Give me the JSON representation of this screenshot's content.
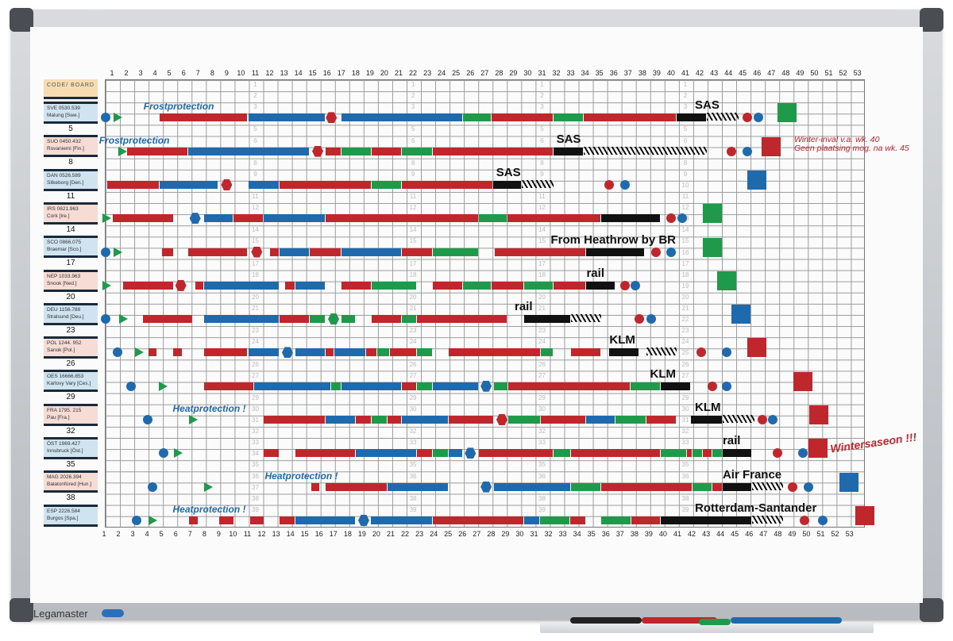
{
  "brand": "Legamaster",
  "header_label": "CODE/ BOARD",
  "colors": {
    "r": "#c0272d",
    "b": "#1f6aad",
    "g": "#1e9a4a",
    "k": "#111111",
    "y": "#f6dcb0",
    "lb": "#cfe3f1",
    "lp": "#f6dcd4"
  },
  "weeks": [
    "1",
    "2",
    "3",
    "4",
    "5",
    "6",
    "7",
    "8",
    "9",
    "10",
    "11",
    "12",
    "13",
    "14",
    "15",
    "16",
    "17",
    "18",
    "19",
    "20",
    "21",
    "22",
    "23",
    "24",
    "25",
    "26",
    "27",
    "28",
    "29",
    "30",
    "31",
    "32",
    "33",
    "34",
    "35",
    "36",
    "37",
    "38",
    "39",
    "40",
    "41",
    "42",
    "43",
    "44",
    "45",
    "46",
    "47",
    "48",
    "49",
    "50",
    "51",
    "52",
    "53"
  ],
  "lane_numbers": [
    "5",
    "8",
    "11",
    "14",
    "17",
    "20",
    "23",
    "26",
    "29",
    "32",
    "35",
    "38"
  ],
  "note": {
    "line1": "Winter-inval v.a. wk. 40",
    "line2": "Geen plaatsing mog. na wk. 45"
  },
  "lanes": [
    {
      "code": "SVE 0530.539",
      "place": "Malung [Swe.]",
      "bars": [
        [
          3.8,
          10.0,
          "r"
        ],
        [
          10.0,
          15.4,
          "b"
        ],
        [
          16.5,
          25.0,
          "b"
        ],
        [
          25.0,
          27.0,
          "g"
        ],
        [
          27.0,
          31.3,
          "r"
        ],
        [
          31.3,
          33.4,
          "g"
        ],
        [
          33.4,
          39.9,
          "r"
        ],
        [
          39.9,
          42.0,
          "k"
        ]
      ],
      "hatch": [
        [
          42.0,
          44.2
        ]
      ],
      "marks": [
        [
          0.06,
          "circle",
          "b"
        ],
        [
          0.9,
          "tri",
          "g"
        ],
        [
          15.8,
          "hex",
          "r"
        ],
        [
          44.8,
          "circle",
          "r"
        ],
        [
          45.6,
          "circle",
          "b"
        ],
        [
          47.6,
          "square",
          "g"
        ]
      ],
      "labels": [
        {
          "text": "Frostprotection",
          "week": 2.7,
          "color": "b"
        },
        {
          "text": "SAS",
          "week": 40.0,
          "color": "k"
        }
      ]
    },
    {
      "code": "SUO 0450.432",
      "place": "Rovaniemi [Fin.]",
      "bars": [
        [
          1.55,
          5.8,
          "r"
        ],
        [
          5.8,
          14.3,
          "b"
        ],
        [
          15.4,
          16.5,
          "r"
        ],
        [
          16.5,
          18.6,
          "g"
        ],
        [
          18.6,
          20.7,
          "r"
        ],
        [
          20.7,
          22.9,
          "g"
        ],
        [
          22.9,
          31.3,
          "r"
        ],
        [
          31.3,
          33.4,
          "k"
        ]
      ],
      "hatch": [
        [
          33.4,
          42.0
        ]
      ],
      "marks": [
        [
          1.22,
          "tri",
          "g"
        ],
        [
          14.85,
          "hex",
          "r"
        ],
        [
          43.7,
          "circle",
          "r"
        ],
        [
          44.8,
          "circle",
          "b"
        ],
        [
          46.5,
          "square",
          "r"
        ]
      ],
      "labels": [
        {
          "text": "Frostprotection",
          "week": -0.4,
          "color": "b"
        },
        {
          "text": "SAS",
          "week": 31.5,
          "color": "k"
        }
      ]
    },
    {
      "code": "DAN 0526.589",
      "place": "Silkeborg [Den.]",
      "bars": [
        [
          0.17,
          3.8,
          "r"
        ],
        [
          3.8,
          7.9,
          "b"
        ],
        [
          10.0,
          12.2,
          "b"
        ],
        [
          12.2,
          18.6,
          "r"
        ],
        [
          18.6,
          20.7,
          "g"
        ],
        [
          20.7,
          27.1,
          "r"
        ],
        [
          27.1,
          29.1,
          "k"
        ]
      ],
      "hatch": [
        [
          29.1,
          31.3
        ]
      ],
      "marks": [
        [
          8.5,
          "hex",
          "r"
        ],
        [
          35.2,
          "circle",
          "r"
        ],
        [
          36.3,
          "circle",
          "b"
        ],
        [
          45.5,
          "square",
          "b"
        ]
      ],
      "labels": [
        {
          "text": "SAS",
          "week": 27.3,
          "color": "k"
        }
      ]
    },
    {
      "code": "IRS 0621.963",
      "place": "Cork [Ire.]",
      "bars": [
        [
          0.55,
          4.8,
          "r"
        ],
        [
          6.9,
          9.0,
          "b"
        ],
        [
          9.0,
          11.1,
          "r"
        ],
        [
          11.1,
          15.4,
          "b"
        ],
        [
          15.4,
          26.1,
          "r"
        ],
        [
          26.1,
          28.1,
          "g"
        ],
        [
          28.1,
          34.6,
          "r"
        ],
        [
          34.6,
          38.8,
          "k"
        ]
      ],
      "hatch": [],
      "marks": [
        [
          0.1,
          "tri",
          "g"
        ],
        [
          6.3,
          "hex",
          "b"
        ],
        [
          39.5,
          "circle",
          "r"
        ],
        [
          40.3,
          "circle",
          "b"
        ],
        [
          42.4,
          "square",
          "g"
        ]
      ],
      "labels": []
    },
    {
      "code": "SCO 0866.075",
      "place": "Braemar [Sco.]",
      "bars": [
        [
          4.0,
          4.8,
          "r"
        ],
        [
          5.8,
          10.0,
          "r"
        ],
        [
          11.5,
          12.2,
          "r"
        ],
        [
          12.2,
          14.3,
          "b"
        ],
        [
          14.3,
          16.5,
          "r"
        ],
        [
          16.5,
          20.7,
          "b"
        ],
        [
          20.7,
          22.9,
          "r"
        ],
        [
          22.9,
          26.1,
          "g"
        ],
        [
          27.2,
          33.6,
          "r"
        ],
        [
          33.6,
          37.7,
          "k"
        ]
      ],
      "hatch": [],
      "marks": [
        [
          0.06,
          "circle",
          "b"
        ],
        [
          0.9,
          "tri",
          "g"
        ],
        [
          10.6,
          "hex",
          "r"
        ],
        [
          38.45,
          "circle",
          "r"
        ],
        [
          39.5,
          "circle",
          "b"
        ],
        [
          42.4,
          "square",
          "g"
        ]
      ],
      "labels": [
        {
          "text": "From Heathrow by BR",
          "week": 31.4,
          "color": "k"
        }
      ]
    },
    {
      "code": "NEP 1033.963",
      "place": "Snook [Ned.]",
      "bars": [
        [
          1.3,
          4.8,
          "r"
        ],
        [
          6.3,
          6.9,
          "r"
        ],
        [
          6.9,
          12.2,
          "b"
        ],
        [
          12.6,
          13.3,
          "r"
        ],
        [
          13.3,
          15.4,
          "b"
        ],
        [
          16.5,
          18.6,
          "r"
        ],
        [
          18.6,
          21.8,
          "g"
        ],
        [
          22.9,
          25.0,
          "r"
        ],
        [
          25.0,
          27.0,
          "g"
        ],
        [
          27.0,
          29.25,
          "r"
        ],
        [
          29.25,
          31.3,
          "g"
        ],
        [
          31.3,
          33.6,
          "r"
        ],
        [
          33.6,
          35.6,
          "k"
        ]
      ],
      "hatch": [],
      "marks": [
        [
          0.1,
          "tri",
          "g"
        ],
        [
          5.3,
          "hex",
          "r"
        ],
        [
          36.3,
          "circle",
          "r"
        ],
        [
          37.0,
          "circle",
          "b"
        ],
        [
          43.4,
          "square",
          "g"
        ]
      ],
      "labels": [
        {
          "text": "rail",
          "week": 33.6,
          "color": "k"
        }
      ]
    },
    {
      "code": "DEU 1156.788",
      "place": "Stralsund [Deu.]",
      "bars": [
        [
          2.66,
          6.15,
          "r"
        ],
        [
          6.9,
          12.2,
          "b"
        ],
        [
          12.2,
          14.3,
          "r"
        ],
        [
          14.3,
          15.4,
          "g"
        ],
        [
          16.5,
          17.5,
          "g"
        ],
        [
          18.6,
          20.7,
          "r"
        ],
        [
          20.7,
          21.8,
          "g"
        ],
        [
          21.8,
          28.1,
          "r"
        ],
        [
          29.25,
          32.5,
          "k"
        ]
      ],
      "hatch": [
        [
          32.5,
          34.6
        ]
      ],
      "marks": [
        [
          0.06,
          "circle",
          "b"
        ],
        [
          1.3,
          "tri",
          "g"
        ],
        [
          15.96,
          "hex",
          "g"
        ],
        [
          37.3,
          "circle",
          "r"
        ],
        [
          38.1,
          "circle",
          "b"
        ],
        [
          44.4,
          "square",
          "b"
        ]
      ],
      "labels": [
        {
          "text": "rail",
          "week": 29.0,
          "color": "k"
        }
      ]
    },
    {
      "code": "POL 1244. 952",
      "place": "Sanok [Pol.]",
      "bars": [
        [
          3.05,
          3.66,
          "r"
        ],
        [
          4.76,
          5.43,
          "r"
        ],
        [
          6.9,
          10.0,
          "r"
        ],
        [
          10.0,
          12.2,
          "b"
        ],
        [
          13.3,
          15.4,
          "b"
        ],
        [
          15.4,
          16.0,
          "r"
        ],
        [
          16.0,
          18.2,
          "b"
        ],
        [
          18.2,
          19.0,
          "r"
        ],
        [
          19.0,
          19.9,
          "g"
        ],
        [
          19.9,
          21.8,
          "r"
        ],
        [
          21.8,
          22.9,
          "g"
        ],
        [
          23.99,
          30.4,
          "r"
        ],
        [
          30.4,
          31.3,
          "g"
        ],
        [
          32.5,
          34.6,
          "r"
        ],
        [
          35.2,
          37.3,
          "k"
        ]
      ],
      "hatch": [
        [
          37.8,
          39.9
        ]
      ],
      "marks": [
        [
          0.9,
          "circle",
          "b"
        ],
        [
          2.38,
          "tri",
          "g"
        ],
        [
          12.74,
          "hex",
          "b"
        ],
        [
          41.6,
          "circle",
          "r"
        ],
        [
          43.4,
          "circle",
          "b"
        ],
        [
          45.5,
          "square",
          "r"
        ]
      ],
      "labels": [
        {
          "text": "KLM",
          "week": 35.2,
          "color": "k"
        }
      ]
    },
    {
      "code": "OES 16666.853",
      "place": "Karlovy Vary [Ces.]",
      "bars": [
        [
          6.9,
          10.4,
          "r"
        ],
        [
          10.4,
          15.8,
          "b"
        ],
        [
          15.8,
          16.5,
          "g"
        ],
        [
          16.5,
          20.7,
          "b"
        ],
        [
          20.7,
          21.8,
          "r"
        ],
        [
          21.8,
          22.9,
          "g"
        ],
        [
          22.9,
          26.1,
          "b"
        ],
        [
          27.15,
          28.14,
          "g"
        ],
        [
          28.14,
          36.7,
          "r"
        ],
        [
          36.7,
          38.8,
          "g"
        ],
        [
          38.8,
          40.9,
          "k"
        ]
      ],
      "hatch": [],
      "marks": [
        [
          1.83,
          "circle",
          "b"
        ],
        [
          4.04,
          "tri",
          "g"
        ],
        [
          26.6,
          "hex",
          "b"
        ],
        [
          42.4,
          "circle",
          "r"
        ],
        [
          43.4,
          "circle",
          "b"
        ],
        [
          48.7,
          "square",
          "r"
        ]
      ],
      "labels": [
        {
          "text": "KLM",
          "week": 38.9,
          "color": "k"
        }
      ]
    },
    {
      "code": "FRA 1795. 215",
      "place": "Pau [Fra.]",
      "bars": [
        [
          11.1,
          15.4,
          "r"
        ],
        [
          15.4,
          17.5,
          "b"
        ],
        [
          17.5,
          18.6,
          "r"
        ],
        [
          18.6,
          19.7,
          "g"
        ],
        [
          19.7,
          20.7,
          "r"
        ],
        [
          20.7,
          24.0,
          "b"
        ],
        [
          24.0,
          27.15,
          "r"
        ],
        [
          28.14,
          30.4,
          "g"
        ],
        [
          30.4,
          33.6,
          "r"
        ],
        [
          33.6,
          35.6,
          "b"
        ],
        [
          35.6,
          37.8,
          "g"
        ],
        [
          37.8,
          39.9,
          "r"
        ],
        [
          40.9,
          43.1,
          "k"
        ]
      ],
      "hatch": [
        [
          43.1,
          45.3
        ]
      ],
      "marks": [
        [
          2.99,
          "circle",
          "b"
        ],
        [
          6.15,
          "tri",
          "g"
        ],
        [
          27.7,
          "hex",
          "r"
        ],
        [
          45.9,
          "circle",
          "r"
        ],
        [
          46.6,
          "circle",
          "b"
        ],
        [
          49.8,
          "square",
          "r"
        ]
      ],
      "labels": [
        {
          "text": "Heatprotection !",
          "week": 5.8,
          "color": "b"
        },
        {
          "text": "KLM",
          "week": 40.9,
          "color": "k"
        }
      ]
    },
    {
      "code": "ÖST 1969.427",
      "place": "Innsbruck [Öst.]",
      "bars": [
        [
          11.1,
          12.2,
          "r"
        ],
        [
          13.3,
          17.5,
          "r"
        ],
        [
          17.5,
          21.8,
          "b"
        ],
        [
          21.8,
          22.9,
          "r"
        ],
        [
          22.9,
          24.0,
          "g"
        ],
        [
          24.0,
          25.0,
          "b"
        ],
        [
          26.1,
          31.3,
          "r"
        ],
        [
          31.3,
          32.5,
          "g"
        ],
        [
          32.5,
          38.8,
          "r"
        ],
        [
          38.8,
          40.6,
          "g"
        ],
        [
          40.6,
          41.0,
          "r"
        ],
        [
          41.0,
          41.7,
          "g"
        ],
        [
          41.7,
          42.4,
          "r"
        ],
        [
          42.4,
          43.1,
          "g"
        ],
        [
          43.1,
          45.15,
          "k"
        ]
      ],
      "hatch": [],
      "marks": [
        [
          4.1,
          "circle",
          "b"
        ],
        [
          5.1,
          "tri",
          "g"
        ],
        [
          25.5,
          "hex",
          "b"
        ],
        [
          46.9,
          "circle",
          "r"
        ],
        [
          48.7,
          "circle",
          "b"
        ],
        [
          49.75,
          "square",
          "r"
        ]
      ],
      "labels": [
        {
          "text": "rail",
          "week": 43.1,
          "color": "k"
        },
        {
          "text": "Wintersaseon !!!",
          "week": 50.6,
          "color": "r"
        }
      ]
    },
    {
      "code": "MAG 2026.394",
      "place": "Balatonfüred [Hun.]",
      "bars": [
        [
          14.4,
          15.0,
          "r"
        ],
        [
          15.4,
          19.7,
          "r"
        ],
        [
          19.7,
          24.0,
          "b"
        ],
        [
          27.15,
          32.5,
          "b"
        ],
        [
          32.5,
          34.6,
          "g"
        ],
        [
          34.6,
          41.0,
          "r"
        ],
        [
          41.0,
          42.4,
          "g"
        ],
        [
          42.4,
          43.1,
          "r"
        ],
        [
          43.1,
          45.15,
          "k"
        ]
      ],
      "hatch": [
        [
          45.15,
          47.3
        ]
      ],
      "marks": [
        [
          3.32,
          "circle",
          "b"
        ],
        [
          7.2,
          "tri",
          "g"
        ],
        [
          26.6,
          "hex",
          "b"
        ],
        [
          48.0,
          "circle",
          "r"
        ],
        [
          49.1,
          "circle",
          "b"
        ],
        [
          51.9,
          "square",
          "b"
        ]
      ],
      "labels": [
        {
          "text": "Heatprotection !",
          "week": 9.5,
          "color": "b"
        },
        {
          "text": "Air France",
          "week": 43.1,
          "color": "k"
        }
      ]
    },
    {
      "code": "ESP 2226.584",
      "place": "Burgos [Spa.]",
      "bars": [
        [
          5.87,
          6.54,
          "r"
        ],
        [
          7.98,
          9.03,
          "r"
        ],
        [
          10.14,
          11.14,
          "r"
        ],
        [
          12.19,
          13.3,
          "r"
        ],
        [
          13.3,
          17.5,
          "b"
        ],
        [
          18.56,
          22.9,
          "b"
        ],
        [
          22.9,
          29.25,
          "r"
        ],
        [
          29.25,
          30.36,
          "b"
        ],
        [
          30.36,
          32.47,
          "g"
        ],
        [
          32.47,
          33.57,
          "r"
        ],
        [
          34.63,
          36.73,
          "g"
        ],
        [
          36.73,
          38.78,
          "r"
        ],
        [
          38.78,
          45.15,
          "k"
        ]
      ],
      "hatch": [
        [
          45.15,
          47.3
        ]
      ],
      "marks": [
        [
          2.22,
          "circle",
          "b"
        ],
        [
          3.32,
          "tri",
          "g"
        ],
        [
          18.06,
          "hex",
          "b"
        ],
        [
          48.8,
          "circle",
          "r"
        ],
        [
          50.1,
          "circle",
          "b"
        ],
        [
          53.0,
          "square",
          "r"
        ]
      ],
      "labels": [
        {
          "text": "Heatprotection !",
          "week": 5.1,
          "color": "b"
        },
        {
          "text": "Rotterdam-Santander",
          "week": 38.8,
          "color": "k"
        }
      ]
    }
  ]
}
